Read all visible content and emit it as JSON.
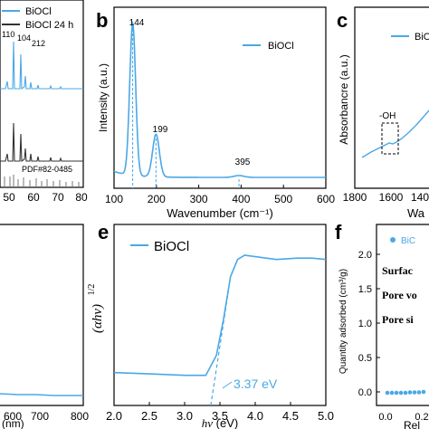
{
  "colors": {
    "series": "#4aa8e6",
    "text": "#111111",
    "dark": "#333333",
    "frame": "#000000"
  },
  "chart_data": [
    {
      "panel": "a",
      "type": "line",
      "legend": [
        "BiOCl",
        "BiOCl 24 h"
      ],
      "peak_labels": [
        "110",
        "104",
        "212"
      ],
      "reference_label": "PDF#82-0485",
      "xticks": [
        "50",
        "60",
        "70",
        "80"
      ],
      "xlim": [
        40,
        80
      ]
    },
    {
      "panel": "b",
      "type": "line",
      "title": "",
      "xlabel": "Wavenumber (cm⁻¹)",
      "ylabel": "Intensity (a.u.)",
      "xlim": [
        100,
        600
      ],
      "xticks": [
        100,
        200,
        300,
        400,
        500,
        600
      ],
      "series": [
        {
          "name": "BiOCl"
        }
      ],
      "peaks": [
        {
          "x": 144,
          "y": 1.0,
          "w": 7
        },
        {
          "x": 199,
          "y": 0.28,
          "w": 8
        },
        {
          "x": 395,
          "y": 0.012,
          "w": 12
        }
      ],
      "baseline": 0.04,
      "peak_labels": [
        "144",
        "199",
        "395"
      ]
    },
    {
      "panel": "c",
      "type": "line",
      "xlabel": "Wa",
      "ylabel": "Absorbancre (a.u.)",
      "xlim": [
        1800,
        1350
      ],
      "xticks": [
        "1800",
        "1600",
        "140"
      ],
      "legend": [
        "BiOCl"
      ],
      "annotations": [
        "-OH"
      ]
    },
    {
      "panel": "d",
      "type": "line",
      "xlabel": "(nm)",
      "xticks": [
        "600",
        "700",
        "800"
      ],
      "xlim": [
        550,
        800
      ]
    },
    {
      "panel": "e",
      "type": "line",
      "xlabel": "hv (eV)",
      "ylabel": "(αhv)^1/2",
      "xlim": [
        2.0,
        5.0
      ],
      "xticks": [
        "2.0",
        "2.5",
        "3.0",
        "3.5",
        "4.0",
        "4.5",
        "5.0"
      ],
      "series": [
        {
          "name": "BiOCl",
          "x": [
            2.0,
            2.5,
            3.0,
            3.3,
            3.45,
            3.55,
            3.65,
            3.75,
            3.85,
            4.0,
            4.3,
            4.6,
            4.8,
            5.0
          ],
          "y": [
            0.18,
            0.17,
            0.16,
            0.16,
            0.3,
            0.55,
            0.85,
            0.97,
            1.0,
            0.99,
            0.97,
            0.98,
            0.98,
            0.97
          ]
        }
      ],
      "annotation": "3.37 eV",
      "band_gap_eV": 3.37
    },
    {
      "panel": "f",
      "type": "scatter",
      "ylabel": "Quantity adsorbed (cm³/g)",
      "ylim": [
        0,
        2.0
      ],
      "yticks": [
        "0.0",
        "0.5",
        "1.0",
        "1.5",
        "2.0"
      ],
      "xlabel": "Rel",
      "xticks": [
        "0.0",
        "0.2"
      ],
      "legend": [
        "BiC"
      ],
      "text_lines": [
        "Surfac",
        "Pore vo",
        "Pore si"
      ]
    }
  ],
  "panel_letters": [
    "b",
    "c",
    "e",
    "f"
  ]
}
